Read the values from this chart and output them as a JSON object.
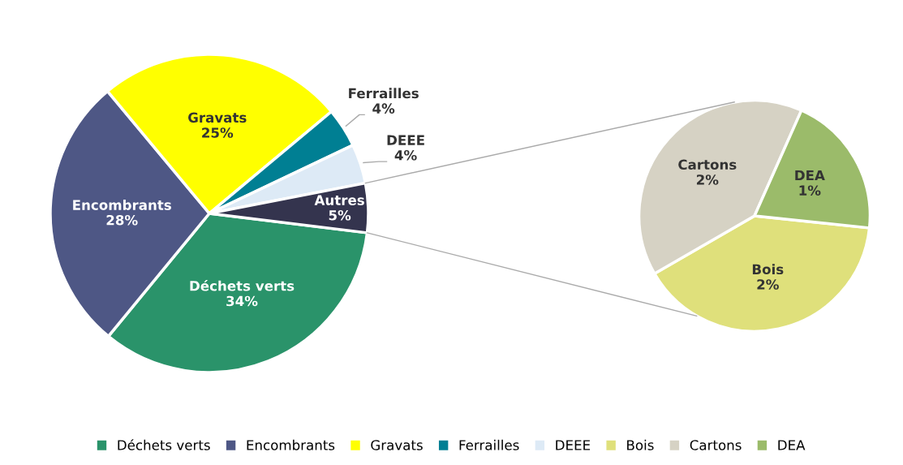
{
  "chart_data": [
    {
      "type": "pie",
      "categories": [
        "Déchets verts",
        "Encombrants",
        "Gravats",
        "Ferrailles",
        "DEEE",
        "Autres"
      ],
      "values": [
        34,
        28,
        25,
        4,
        4,
        5
      ],
      "colors": [
        "#2a936a",
        "#4e5785",
        "#ffff00",
        "#007f93",
        "#ddeaf6",
        "#34344e"
      ],
      "value_labels": [
        "34%",
        "28%",
        "25%",
        "4%",
        "4%",
        "5%"
      ],
      "legend": "bottom"
    },
    {
      "type": "pie",
      "categories": [
        "Bois",
        "Cartons",
        "DEA"
      ],
      "values": [
        2,
        2,
        1
      ],
      "colors": [
        "#dfe07b",
        "#d6d2c4",
        "#9bbb6a"
      ],
      "value_labels": [
        "2%",
        "2%",
        "1%"
      ],
      "legend": "bottom"
    }
  ]
}
